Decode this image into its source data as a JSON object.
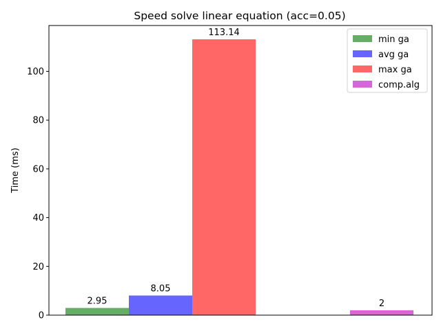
{
  "chart_data": {
    "type": "bar",
    "title": "Speed solve linear equation (acc=0.05)",
    "xlabel": "",
    "ylabel": "Time (ms)",
    "ylim": [
      0,
      118.8
    ],
    "yticks": [
      0,
      20,
      40,
      60,
      80,
      100
    ],
    "grid": false,
    "legend_position": "top-right",
    "series": [
      {
        "name": "min ga",
        "values": [
          2.95
        ],
        "labels": [
          "2.95"
        ],
        "color": "#66ad66"
      },
      {
        "name": "avg ga",
        "values": [
          8.05
        ],
        "labels": [
          "8.05"
        ],
        "color": "#6666ff"
      },
      {
        "name": "max ga",
        "values": [
          113.14
        ],
        "labels": [
          "113.14"
        ],
        "color": "#ff6666"
      },
      {
        "name": "comp.alg",
        "values": [
          2
        ],
        "labels": [
          "2"
        ],
        "color": "#d866d8"
      }
    ]
  }
}
